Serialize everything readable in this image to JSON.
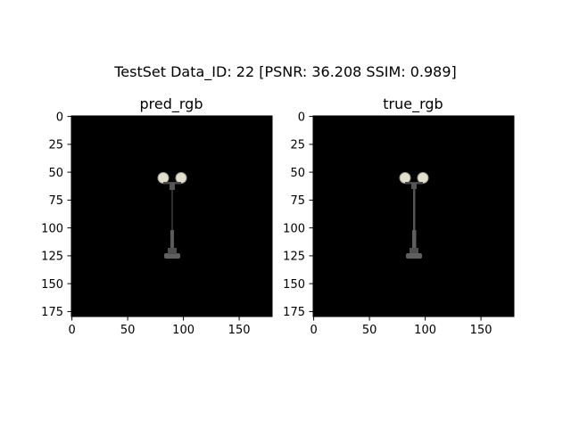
{
  "figure": {
    "suptitle": "TestSet  Data_ID: 22 [PSNR: 36.208 SSIM: 0.989]"
  },
  "panels": [
    {
      "title": "pred_rgb",
      "xticks": [
        "0",
        "50",
        "100",
        "150"
      ],
      "yticks": [
        "0",
        "25",
        "50",
        "75",
        "100",
        "125",
        "150",
        "175"
      ],
      "image": "street lamp with two globe lights on black background (reconstruction)"
    },
    {
      "title": "true_rgb",
      "xticks": [
        "0",
        "50",
        "100",
        "150"
      ],
      "yticks": [
        "0",
        "25",
        "50",
        "75",
        "100",
        "125",
        "150",
        "175"
      ],
      "image": "street lamp with two globe lights on black background (ground truth)"
    }
  ],
  "colors": {
    "background": "#000000",
    "globe": "#e4dfcc",
    "pole": "#5a5a5a"
  }
}
